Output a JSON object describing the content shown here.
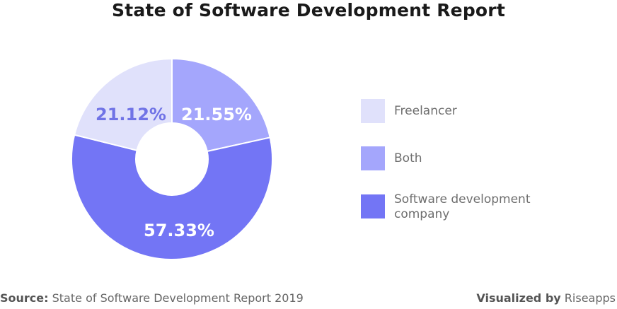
{
  "chart_data": {
    "type": "pie",
    "title": "State of Software Development Report",
    "categories": [
      "Freelancer",
      "Both",
      "Software development company"
    ],
    "values": [
      21.12,
      21.55,
      57.33
    ],
    "data_labels": [
      "21.12%",
      "21.55%",
      "57.33%"
    ],
    "colors": [
      "#e0e1fb",
      "#a4a6fc",
      "#7375f5"
    ],
    "label_colors": [
      "#7073e6",
      "#ffffff",
      "#ffffff"
    ],
    "donut": true,
    "legend_position": "right"
  },
  "legend": {
    "items": [
      {
        "label": "Freelancer",
        "color": "#e0e1fb"
      },
      {
        "label": "Both",
        "color": "#a4a6fc"
      },
      {
        "label": "Software development company",
        "color": "#7375f5"
      }
    ]
  },
  "footer": {
    "source_label": "Source:",
    "source_text": "State of Software Development Report 2019",
    "visualized_label": "Visualized by",
    "visualized_text": "Riseapps"
  }
}
